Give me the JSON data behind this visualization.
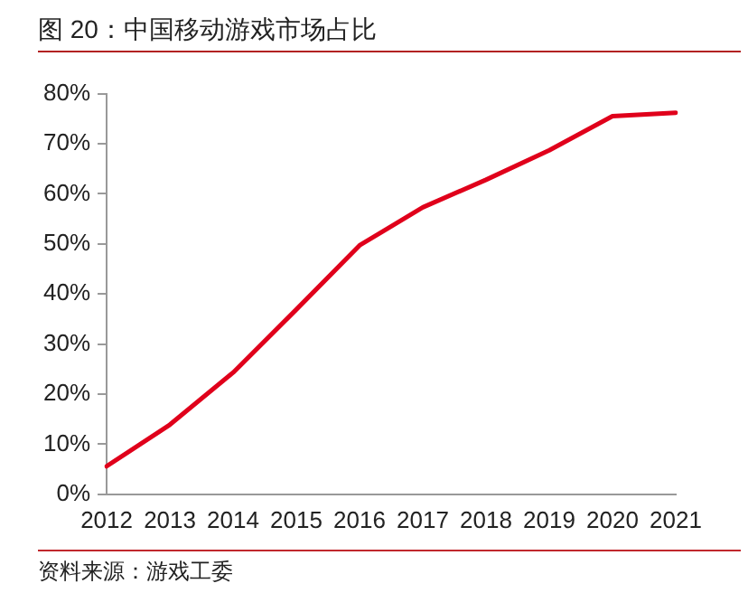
{
  "chart_data": {
    "type": "line",
    "title": "图 20：中国移动游戏市场占比",
    "categories": [
      "2012",
      "2013",
      "2014",
      "2015",
      "2016",
      "2017",
      "2018",
      "2019",
      "2020",
      "2021"
    ],
    "series": [
      {
        "color": "#e0001b",
        "values": [
          5.6,
          13.9,
          24.3,
          36.9,
          49.7,
          57.3,
          62.8,
          68.7,
          75.5,
          76.2
        ]
      }
    ],
    "ylim": [
      0,
      80
    ],
    "yticks": [
      {
        "value": 0,
        "label": "0%"
      },
      {
        "value": 10,
        "label": "10%"
      },
      {
        "value": 20,
        "label": "20%"
      },
      {
        "value": 30,
        "label": "30%"
      },
      {
        "value": 40,
        "label": "40%"
      },
      {
        "value": 50,
        "label": "50%"
      },
      {
        "value": 60,
        "label": "60%"
      },
      {
        "value": 70,
        "label": "70%"
      },
      {
        "value": 80,
        "label": "80%"
      }
    ],
    "grid": false,
    "legend": false,
    "marker": "none",
    "line_style": "solid",
    "annotations": [
      "资料来源：游戏工委"
    ]
  }
}
